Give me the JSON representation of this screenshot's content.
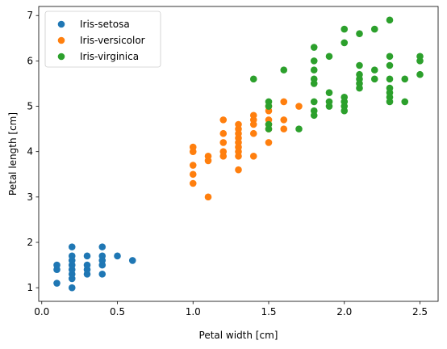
{
  "chart_data": {
    "type": "scatter",
    "title": "",
    "xlabel": "Petal width [cm]",
    "ylabel": "Petal length [cm]",
    "xlim": [
      -0.02,
      2.62
    ],
    "ylim": [
      0.7,
      7.2
    ],
    "xticks": [
      0.0,
      0.5,
      1.0,
      1.5,
      2.0,
      2.5
    ],
    "xtick_labels": [
      "0.0",
      "0.5",
      "1.0",
      "1.5",
      "2.0",
      "2.5"
    ],
    "yticks": [
      1,
      2,
      3,
      4,
      5,
      6,
      7
    ],
    "ytick_labels": [
      "1",
      "2",
      "3",
      "4",
      "5",
      "6",
      "7"
    ],
    "grid": false,
    "legend_position": "top-left",
    "series": [
      {
        "name": "Iris-setosa",
        "color": "#1f77b4",
        "points": [
          [
            0.1,
            1.1
          ],
          [
            0.1,
            1.4
          ],
          [
            0.1,
            1.5
          ],
          [
            0.2,
            1.0
          ],
          [
            0.2,
            1.2
          ],
          [
            0.2,
            1.3
          ],
          [
            0.2,
            1.4
          ],
          [
            0.2,
            1.5
          ],
          [
            0.2,
            1.6
          ],
          [
            0.2,
            1.7
          ],
          [
            0.2,
            1.9
          ],
          [
            0.3,
            1.3
          ],
          [
            0.3,
            1.4
          ],
          [
            0.3,
            1.5
          ],
          [
            0.3,
            1.7
          ],
          [
            0.4,
            1.3
          ],
          [
            0.4,
            1.5
          ],
          [
            0.4,
            1.6
          ],
          [
            0.4,
            1.7
          ],
          [
            0.4,
            1.9
          ],
          [
            0.5,
            1.7
          ],
          [
            0.6,
            1.6
          ]
        ]
      },
      {
        "name": "Iris-versicolor",
        "color": "#ff7f0e",
        "points": [
          [
            1.0,
            3.3
          ],
          [
            1.0,
            3.5
          ],
          [
            1.0,
            3.7
          ],
          [
            1.0,
            4.0
          ],
          [
            1.0,
            4.1
          ],
          [
            1.1,
            3.0
          ],
          [
            1.1,
            3.8
          ],
          [
            1.1,
            3.9
          ],
          [
            1.2,
            3.9
          ],
          [
            1.2,
            4.0
          ],
          [
            1.2,
            4.2
          ],
          [
            1.2,
            4.4
          ],
          [
            1.2,
            4.7
          ],
          [
            1.3,
            3.6
          ],
          [
            1.3,
            3.9
          ],
          [
            1.3,
            4.0
          ],
          [
            1.3,
            4.1
          ],
          [
            1.3,
            4.2
          ],
          [
            1.3,
            4.3
          ],
          [
            1.3,
            4.4
          ],
          [
            1.3,
            4.5
          ],
          [
            1.3,
            4.6
          ],
          [
            1.4,
            3.9
          ],
          [
            1.4,
            4.4
          ],
          [
            1.4,
            4.6
          ],
          [
            1.4,
            4.7
          ],
          [
            1.4,
            4.8
          ],
          [
            1.5,
            4.2
          ],
          [
            1.5,
            4.5
          ],
          [
            1.5,
            4.6
          ],
          [
            1.5,
            4.7
          ],
          [
            1.5,
            4.9
          ],
          [
            1.5,
            5.0
          ],
          [
            1.6,
            4.5
          ],
          [
            1.6,
            4.7
          ],
          [
            1.6,
            5.1
          ],
          [
            1.7,
            5.0
          ]
        ]
      },
      {
        "name": "Iris-virginica",
        "color": "#2ca02c",
        "points": [
          [
            1.4,
            5.6
          ],
          [
            1.5,
            4.5
          ],
          [
            1.5,
            4.6
          ],
          [
            1.5,
            5.0
          ],
          [
            1.5,
            5.1
          ],
          [
            1.6,
            5.8
          ],
          [
            1.7,
            4.5
          ],
          [
            1.8,
            4.8
          ],
          [
            1.8,
            4.9
          ],
          [
            1.8,
            5.1
          ],
          [
            1.8,
            5.5
          ],
          [
            1.8,
            5.6
          ],
          [
            1.8,
            5.8
          ],
          [
            1.8,
            6.0
          ],
          [
            1.8,
            6.3
          ],
          [
            1.9,
            5.0
          ],
          [
            1.9,
            5.1
          ],
          [
            1.9,
            5.3
          ],
          [
            1.9,
            6.1
          ],
          [
            2.0,
            4.9
          ],
          [
            2.0,
            5.0
          ],
          [
            2.0,
            5.1
          ],
          [
            2.0,
            5.2
          ],
          [
            2.0,
            6.4
          ],
          [
            2.0,
            6.7
          ],
          [
            2.1,
            5.4
          ],
          [
            2.1,
            5.5
          ],
          [
            2.1,
            5.6
          ],
          [
            2.1,
            5.7
          ],
          [
            2.1,
            5.9
          ],
          [
            2.1,
            6.6
          ],
          [
            2.2,
            5.6
          ],
          [
            2.2,
            5.8
          ],
          [
            2.2,
            6.7
          ],
          [
            2.3,
            5.1
          ],
          [
            2.3,
            5.2
          ],
          [
            2.3,
            5.3
          ],
          [
            2.3,
            5.4
          ],
          [
            2.3,
            5.6
          ],
          [
            2.3,
            5.9
          ],
          [
            2.3,
            6.1
          ],
          [
            2.3,
            6.9
          ],
          [
            2.4,
            5.1
          ],
          [
            2.4,
            5.6
          ],
          [
            2.5,
            5.7
          ],
          [
            2.5,
            6.0
          ],
          [
            2.5,
            6.1
          ]
        ]
      }
    ]
  }
}
